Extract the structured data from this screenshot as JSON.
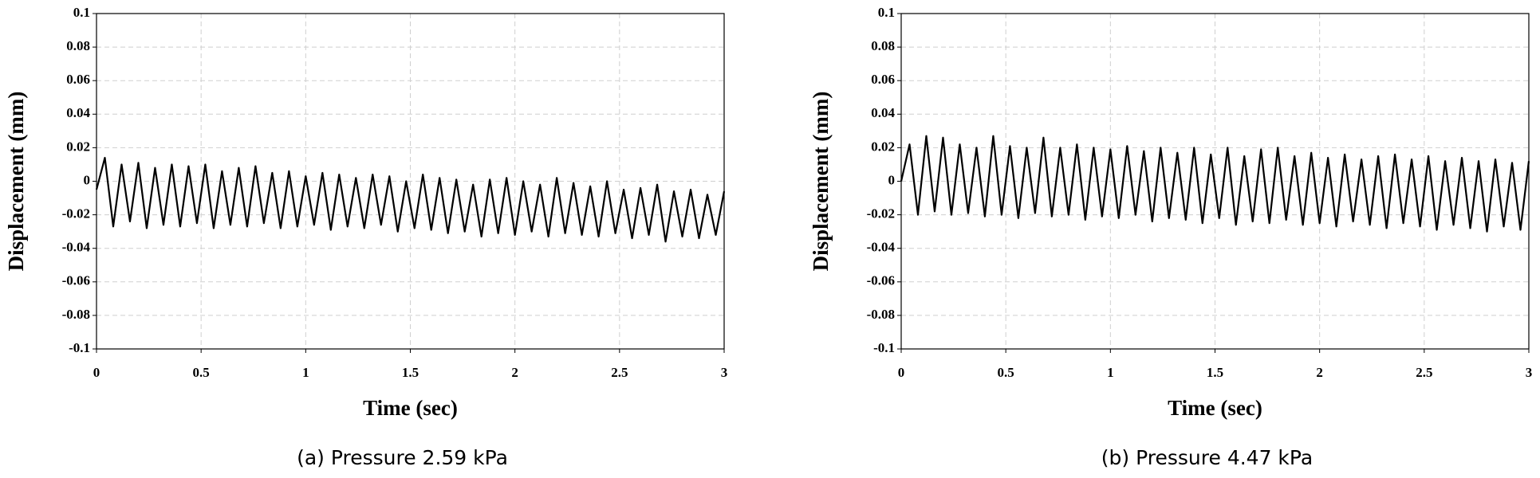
{
  "chart_data": [
    {
      "type": "line",
      "caption": "(a) Pressure 2.59 kPa",
      "xlabel": "Time (sec)",
      "ylabel": "Displacement (mm)",
      "xlim": [
        0,
        3
      ],
      "xticks": [
        0,
        0.5,
        1,
        1.5,
        2,
        2.5,
        3
      ],
      "ylim": [
        -0.1,
        0.1
      ],
      "yticks": [
        -0.1,
        -0.08,
        -0.06,
        -0.04,
        -0.02,
        0,
        0.02,
        0.04,
        0.06,
        0.08,
        0.1
      ],
      "grid": true,
      "x": [
        0,
        0.04,
        0.08,
        0.12,
        0.16,
        0.2,
        0.24,
        0.28,
        0.32,
        0.36,
        0.4,
        0.44,
        0.48,
        0.52,
        0.56,
        0.6,
        0.64,
        0.68,
        0.72,
        0.76,
        0.8,
        0.84,
        0.88,
        0.92,
        0.96,
        1,
        1.04,
        1.08,
        1.12,
        1.16,
        1.2,
        1.24,
        1.28,
        1.32,
        1.36,
        1.4,
        1.44,
        1.48,
        1.52,
        1.56,
        1.6,
        1.64,
        1.68,
        1.72,
        1.76,
        1.8,
        1.84,
        1.88,
        1.92,
        1.96,
        2,
        2.04,
        2.08,
        2.12,
        2.16,
        2.2,
        2.24,
        2.28,
        2.32,
        2.36,
        2.4,
        2.44,
        2.48,
        2.52,
        2.56,
        2.6,
        2.64,
        2.68,
        2.72,
        2.76,
        2.8,
        2.84,
        2.88,
        2.92,
        2.96,
        3
      ],
      "series": [
        {
          "color": "#000000",
          "values": [
            -0.005,
            0.014,
            -0.027,
            0.01,
            -0.024,
            0.011,
            -0.028,
            0.008,
            -0.026,
            0.01,
            -0.027,
            0.009,
            -0.025,
            0.01,
            -0.028,
            0.006,
            -0.026,
            0.008,
            -0.027,
            0.009,
            -0.025,
            0.005,
            -0.028,
            0.006,
            -0.027,
            0.003,
            -0.026,
            0.005,
            -0.029,
            0.004,
            -0.027,
            0.002,
            -0.028,
            0.004,
            -0.026,
            0.003,
            -0.03,
            0.0,
            -0.028,
            0.004,
            -0.029,
            0.002,
            -0.031,
            0.001,
            -0.03,
            -0.002,
            -0.033,
            0.001,
            -0.031,
            0.002,
            -0.032,
            0.0,
            -0.03,
            -0.002,
            -0.033,
            0.002,
            -0.031,
            -0.001,
            -0.032,
            -0.003,
            -0.033,
            0.0,
            -0.031,
            -0.005,
            -0.034,
            -0.004,
            -0.032,
            -0.002,
            -0.036,
            -0.006,
            -0.033,
            -0.005,
            -0.034,
            -0.008,
            -0.032,
            -0.006
          ]
        }
      ]
    },
    {
      "type": "line",
      "caption": "(b) Pressure 4.47 kPa",
      "xlabel": "Time (sec)",
      "ylabel": "Displacement (mm)",
      "xlim": [
        0,
        3
      ],
      "xticks": [
        0,
        0.5,
        1,
        1.5,
        2,
        2.5,
        3
      ],
      "ylim": [
        -0.1,
        0.1
      ],
      "yticks": [
        -0.1,
        -0.08,
        -0.06,
        -0.04,
        -0.02,
        0,
        0.02,
        0.04,
        0.06,
        0.08,
        0.1
      ],
      "grid": true,
      "x": [
        0,
        0.04,
        0.08,
        0.12,
        0.16,
        0.2,
        0.24,
        0.28,
        0.32,
        0.36,
        0.4,
        0.44,
        0.48,
        0.52,
        0.56,
        0.6,
        0.64,
        0.68,
        0.72,
        0.76,
        0.8,
        0.84,
        0.88,
        0.92,
        0.96,
        1,
        1.04,
        1.08,
        1.12,
        1.16,
        1.2,
        1.24,
        1.28,
        1.32,
        1.36,
        1.4,
        1.44,
        1.48,
        1.52,
        1.56,
        1.6,
        1.64,
        1.68,
        1.72,
        1.76,
        1.8,
        1.84,
        1.88,
        1.92,
        1.96,
        2,
        2.04,
        2.08,
        2.12,
        2.16,
        2.2,
        2.24,
        2.28,
        2.32,
        2.36,
        2.4,
        2.44,
        2.48,
        2.52,
        2.56,
        2.6,
        2.64,
        2.68,
        2.72,
        2.76,
        2.8,
        2.84,
        2.88,
        2.92,
        2.96,
        3
      ],
      "series": [
        {
          "color": "#000000",
          "values": [
            0,
            0.022,
            -0.02,
            0.027,
            -0.018,
            0.026,
            -0.02,
            0.022,
            -0.019,
            0.02,
            -0.021,
            0.027,
            -0.02,
            0.021,
            -0.022,
            0.02,
            -0.019,
            0.026,
            -0.021,
            0.02,
            -0.02,
            0.022,
            -0.023,
            0.02,
            -0.021,
            0.019,
            -0.022,
            0.021,
            -0.02,
            0.018,
            -0.024,
            0.02,
            -0.022,
            0.017,
            -0.023,
            0.02,
            -0.025,
            0.016,
            -0.022,
            0.02,
            -0.026,
            0.015,
            -0.024,
            0.019,
            -0.025,
            0.02,
            -0.023,
            0.015,
            -0.026,
            0.017,
            -0.025,
            0.014,
            -0.027,
            0.016,
            -0.024,
            0.013,
            -0.026,
            0.015,
            -0.028,
            0.016,
            -0.025,
            0.013,
            -0.027,
            0.015,
            -0.029,
            0.012,
            -0.026,
            0.014,
            -0.028,
            0.012,
            -0.03,
            0.013,
            -0.027,
            0.011,
            -0.029,
            0.012
          ]
        }
      ]
    }
  ]
}
